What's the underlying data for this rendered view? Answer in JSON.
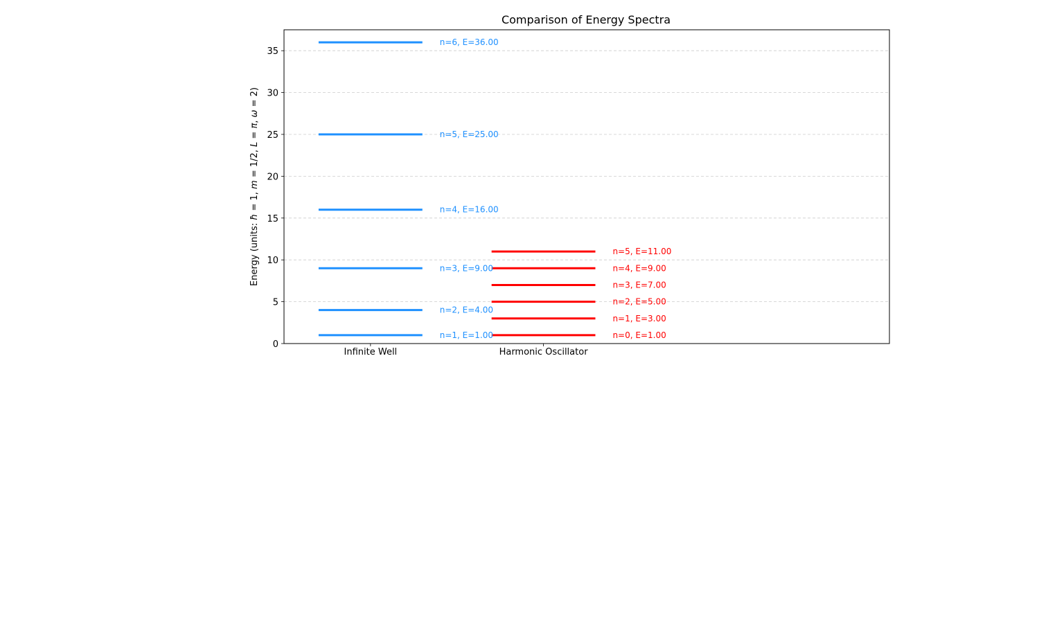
{
  "chart_data": {
    "type": "line",
    "title": "Comparison of Energy Spectra",
    "ylabel_parts": [
      {
        "t": "Energy (units: ",
        "i": false
      },
      {
        "t": "ħ",
        "i": true
      },
      {
        "t": " = 1, ",
        "i": false
      },
      {
        "t": "m",
        "i": true
      },
      {
        "t": " = 1/2, ",
        "i": false
      },
      {
        "t": "L",
        "i": true
      },
      {
        "t": " = ",
        "i": false
      },
      {
        "t": "π",
        "i": true
      },
      {
        "t": ", ",
        "i": false
      },
      {
        "t": "ω",
        "i": true
      },
      {
        "t": " = 2)",
        "i": false
      }
    ],
    "ylim": [
      0,
      37.5
    ],
    "yticks": [
      0,
      5,
      10,
      15,
      20,
      25,
      30,
      35
    ],
    "xlim": [
      -0.5,
      3
    ],
    "grid": "y-dashed",
    "categories": [
      "Infinite Well",
      "Harmonic Oscillator"
    ],
    "series": [
      {
        "name": "Infinite Well",
        "color": "#1e90ff",
        "levels": [
          {
            "n": 1,
            "E": 1.0,
            "label": "n=1, E=1.00"
          },
          {
            "n": 2,
            "E": 4.0,
            "label": "n=2, E=4.00"
          },
          {
            "n": 3,
            "E": 9.0,
            "label": "n=3, E=9.00"
          },
          {
            "n": 4,
            "E": 16.0,
            "label": "n=4, E=16.00"
          },
          {
            "n": 5,
            "E": 25.0,
            "label": "n=5, E=25.00"
          },
          {
            "n": 6,
            "E": 36.0,
            "label": "n=6, E=36.00"
          }
        ]
      },
      {
        "name": "Harmonic Oscillator",
        "color": "#ff0000",
        "levels": [
          {
            "n": 0,
            "E": 1.0,
            "label": "n=0, E=1.00"
          },
          {
            "n": 1,
            "E": 3.0,
            "label": "n=1, E=3.00"
          },
          {
            "n": 2,
            "E": 5.0,
            "label": "n=2, E=5.00"
          },
          {
            "n": 3,
            "E": 7.0,
            "label": "n=3, E=7.00"
          },
          {
            "n": 4,
            "E": 9.0,
            "label": "n=4, E=9.00"
          },
          {
            "n": 5,
            "E": 11.0,
            "label": "n=5, E=11.00"
          }
        ]
      }
    ]
  }
}
